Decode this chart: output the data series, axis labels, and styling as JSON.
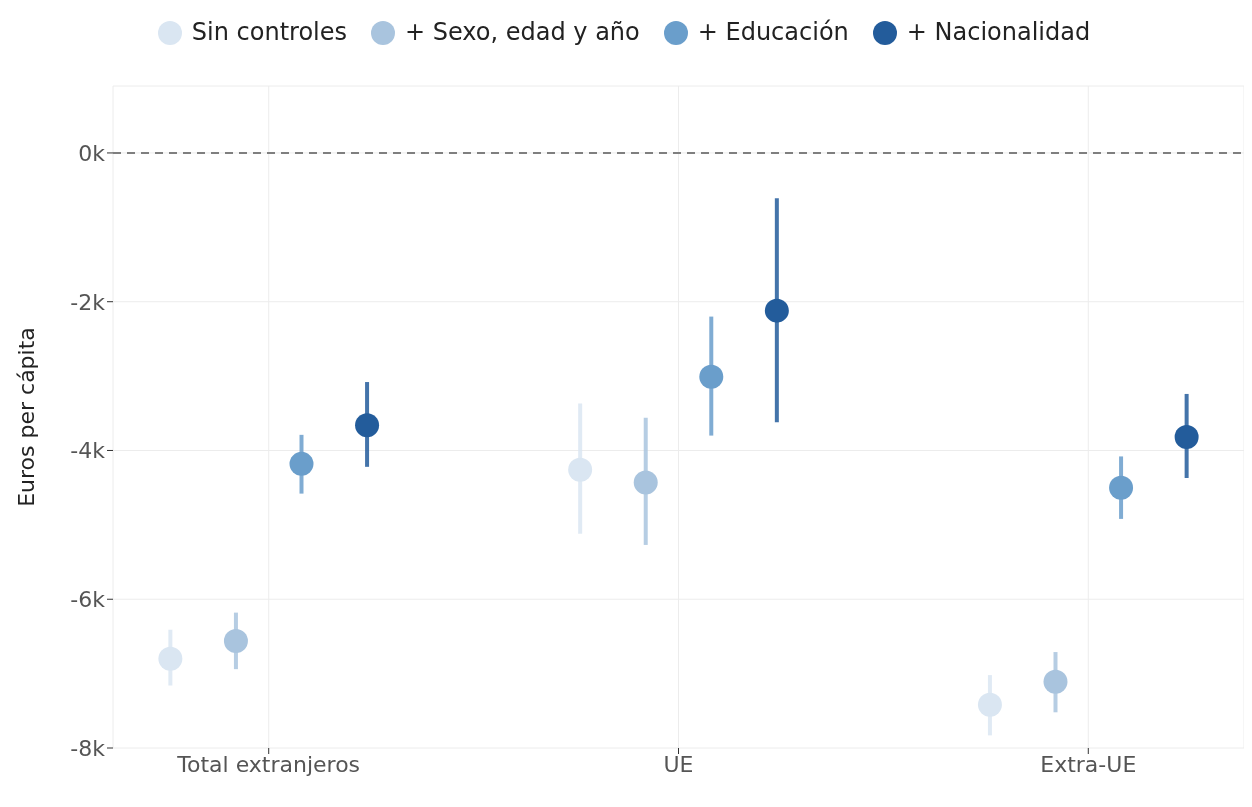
{
  "chart_data": {
    "type": "scatter",
    "ylabel": "Euros per cápita",
    "categories": [
      "Total extranjeros",
      "UE",
      "Extra-UE"
    ],
    "series": [
      {
        "name": "Sin controles",
        "color": "#dae6f2",
        "values": [
          -6.8,
          -4.26,
          -7.42
        ],
        "errors": [
          [
            -7.16,
            -6.41
          ],
          [
            -5.12,
            -3.37
          ],
          [
            -7.83,
            -7.02
          ]
        ]
      },
      {
        "name": "+ Sexo, edad y año",
        "color": "#a9c4de",
        "values": [
          -6.56,
          -4.43,
          -7.11
        ],
        "errors": [
          [
            -6.94,
            -6.18
          ],
          [
            -5.27,
            -3.56
          ],
          [
            -7.52,
            -6.71
          ]
        ]
      },
      {
        "name": "+ Educación",
        "color": "#6a9ecb",
        "values": [
          -4.18,
          -3.01,
          -4.5
        ],
        "errors": [
          [
            -4.58,
            -3.79
          ],
          [
            -3.8,
            -2.2
          ],
          [
            -4.92,
            -4.08
          ]
        ]
      },
      {
        "name": "+ Nacionalidad",
        "color": "#235c9b",
        "values": [
          -3.66,
          -2.12,
          -3.82
        ],
        "errors": [
          [
            -4.22,
            -3.08
          ],
          [
            -3.62,
            -0.61
          ],
          [
            -4.37,
            -3.24
          ]
        ]
      }
    ],
    "ylim": [
      -8,
      0.9
    ],
    "yticks": [
      {
        "value": -8,
        "label": "-8k"
      },
      {
        "value": -6,
        "label": "-6k"
      },
      {
        "value": -4,
        "label": "-4k"
      },
      {
        "value": -2,
        "label": "-2k"
      },
      {
        "value": 0,
        "label": "0k"
      }
    ],
    "ref_lines": [
      {
        "axis": "y",
        "value": 0,
        "color": "#7f7f7f",
        "line_style": "dashed"
      }
    ],
    "grid": true,
    "legend": "top",
    "marker": "circle"
  }
}
